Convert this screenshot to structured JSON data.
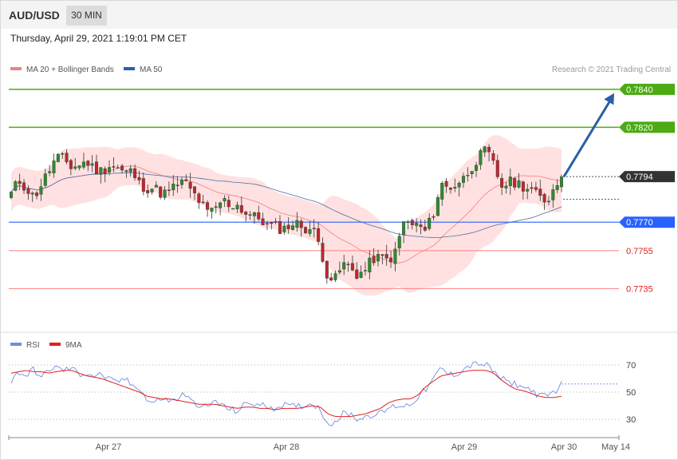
{
  "header": {
    "pair": "AUD/USD",
    "timeframe": "30 MIN"
  },
  "datetime": "Thursday, April 29, 2021 1:19:01 PM CET",
  "legend": {
    "bollinger": "MA 20 + Bollinger Bands",
    "ma50": "MA 50",
    "rsi": "RSI",
    "rsi_ma": "9MA"
  },
  "credit": "Research © 2021 Trading Central",
  "colors": {
    "bull": "#2e8b2e",
    "bear": "#c0272d",
    "band_fill": "#ffdcdc",
    "ma20": "#f08080",
    "ma50": "#4a6fa5",
    "resistance": "#4caa14",
    "pivot": "#2962ff",
    "support": "#ff8080",
    "support_text": "#e0201c",
    "arrow": "#2b5fa8",
    "rsi": "#6f8ee0",
    "rsi_ma": "#e02020"
  },
  "chart_data": [
    {
      "type": "candlestick",
      "ylim": [
        0.7712,
        0.7845
      ],
      "levels": [
        {
          "value": 0.784,
          "label": "0.7840",
          "kind": "resistance"
        },
        {
          "value": 0.782,
          "label": "0.7820",
          "kind": "resistance"
        },
        {
          "value": 0.7794,
          "label": "0.7794",
          "kind": "current"
        },
        {
          "value": 0.777,
          "label": "0.7770",
          "kind": "pivot"
        },
        {
          "value": 0.7755,
          "label": "0.7755",
          "kind": "support"
        },
        {
          "value": 0.7735,
          "label": "0.7735",
          "kind": "support"
        }
      ],
      "x_ticks": [
        "Apr 27",
        "Apr 28",
        "Apr 29",
        "Apr 30",
        "May 14"
      ],
      "anchors": [
        0.7785,
        0.7792,
        0.7788,
        0.7783,
        0.779,
        0.7797,
        0.7804,
        0.7803,
        0.7799,
        0.78,
        0.7802,
        0.7798,
        0.7797,
        0.78,
        0.7799,
        0.7796,
        0.7797,
        0.779,
        0.7788,
        0.7788,
        0.7785,
        0.7786,
        0.779,
        0.7791,
        0.7786,
        0.7781,
        0.7775,
        0.7776,
        0.7782,
        0.7779,
        0.7779,
        0.7775,
        0.7773,
        0.7772,
        0.7768,
        0.7768,
        0.7766,
        0.7769,
        0.7769,
        0.7767,
        0.7766,
        0.7757,
        0.7741,
        0.774,
        0.7748,
        0.7746,
        0.7742,
        0.7745,
        0.7751,
        0.7751,
        0.775,
        0.7754,
        0.777,
        0.7769,
        0.7768,
        0.7765,
        0.7775,
        0.779,
        0.7788,
        0.779,
        0.7793,
        0.7799,
        0.7804,
        0.7808,
        0.78,
        0.7789,
        0.7791,
        0.7791,
        0.7789,
        0.7787,
        0.7783,
        0.7781,
        0.7788,
        0.7794
      ],
      "current_price": 0.7794
    },
    {
      "type": "line",
      "ylim": [
        20,
        80
      ],
      "y_ticks": [
        70,
        50,
        30
      ],
      "series": [
        {
          "name": "RSI",
          "anchors": [
            58,
            65,
            62,
            67,
            60,
            67,
            68,
            66,
            68,
            63,
            64,
            62,
            63,
            59,
            57,
            60,
            55,
            54,
            44,
            42,
            46,
            43,
            45,
            49,
            42,
            41,
            38,
            44,
            40,
            37,
            36,
            41,
            42,
            40,
            40,
            38,
            41,
            39,
            40,
            40,
            42,
            37,
            27,
            28,
            34,
            34,
            30,
            32,
            34,
            34,
            38,
            40,
            40,
            41,
            47,
            52,
            59,
            68,
            63,
            63,
            67,
            70,
            71,
            70,
            65,
            60,
            57,
            56,
            53,
            52,
            47,
            47,
            50,
            56
          ]
        },
        {
          "name": "9MA",
          "anchors": [
            64,
            65,
            66,
            65,
            65,
            64,
            65,
            66,
            66,
            64,
            62,
            61,
            60,
            58,
            56,
            54,
            52,
            50,
            47,
            46,
            45,
            45,
            44,
            43,
            42,
            41,
            41,
            41,
            40,
            39,
            38,
            39,
            39,
            38,
            38,
            37,
            38,
            38,
            38,
            39,
            40,
            39,
            34,
            32,
            32,
            32,
            33,
            34,
            36,
            38,
            42,
            44,
            45,
            45,
            48,
            54,
            58,
            62,
            63,
            64,
            65,
            66,
            66,
            66,
            64,
            59,
            55,
            52,
            51,
            49,
            47,
            46,
            46,
            47
          ]
        }
      ]
    }
  ]
}
